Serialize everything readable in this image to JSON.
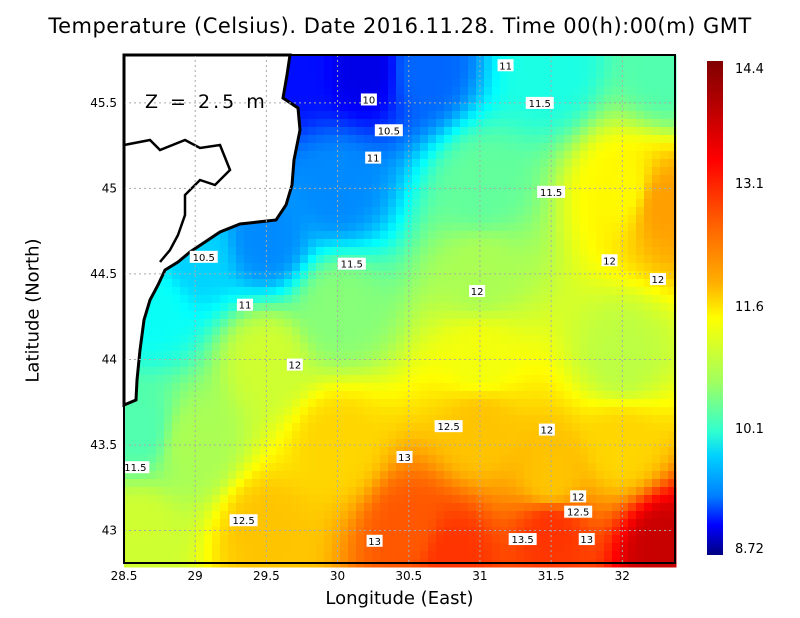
{
  "title": "Temperature (Celsius). Date 2016.11.28. Time 00(h):00(m) GMT",
  "depth_label": "Z = 2.5 m",
  "chart_data": {
    "type": "heatmap",
    "title": "Temperature (Celsius). Date 2016.11.28. Time 00(h):00(m) GMT",
    "xlabel": "Longitude (East)",
    "ylabel": "Latitude (North)",
    "xlim": [
      28.5,
      32.37
    ],
    "ylim": [
      42.81,
      45.78
    ],
    "xticks": [
      "28.5",
      "29",
      "29.5",
      "30",
      "30.5",
      "31",
      "31.5",
      "32"
    ],
    "yticks": [
      "43",
      "43.5",
      "44",
      "44.5",
      "45",
      "45.5"
    ],
    "grid": true,
    "colorbar": {
      "min": 8.72,
      "max": 14.4,
      "labels": [
        "14.4",
        "13.1",
        "11.6",
        "10.1",
        "8.72"
      ],
      "colormap": "jet"
    },
    "contour_labels": [
      {
        "text": "11",
        "lon": 31.18,
        "lat": 45.72
      },
      {
        "text": "10",
        "lon": 30.22,
        "lat": 45.52
      },
      {
        "text": "11.5",
        "lon": 31.42,
        "lat": 45.5
      },
      {
        "text": "10.5",
        "lon": 30.36,
        "lat": 45.34
      },
      {
        "text": "11",
        "lon": 30.25,
        "lat": 45.18
      },
      {
        "text": "11.5",
        "lon": 31.5,
        "lat": 44.98
      },
      {
        "text": "10.5",
        "lon": 29.06,
        "lat": 44.6
      },
      {
        "text": "11.5",
        "lon": 30.1,
        "lat": 44.56
      },
      {
        "text": "12",
        "lon": 31.91,
        "lat": 44.58
      },
      {
        "text": "12",
        "lon": 32.25,
        "lat": 44.47
      },
      {
        "text": "12",
        "lon": 30.98,
        "lat": 44.4
      },
      {
        "text": "11",
        "lon": 29.35,
        "lat": 44.32
      },
      {
        "text": "12",
        "lon": 29.7,
        "lat": 43.97
      },
      {
        "text": "12.5",
        "lon": 30.78,
        "lat": 43.61
      },
      {
        "text": "12",
        "lon": 31.47,
        "lat": 43.59
      },
      {
        "text": "13",
        "lon": 30.47,
        "lat": 43.43
      },
      {
        "text": "11.5",
        "lon": 28.58,
        "lat": 43.37
      },
      {
        "text": "12",
        "lon": 31.69,
        "lat": 43.2
      },
      {
        "text": "12.5",
        "lon": 31.69,
        "lat": 43.11
      },
      {
        "text": "12.5",
        "lon": 29.34,
        "lat": 43.06
      },
      {
        "text": "13.5",
        "lon": 31.3,
        "lat": 42.95
      },
      {
        "text": "13",
        "lon": 30.26,
        "lat": 42.94
      },
      {
        "text": "13",
        "lon": 31.75,
        "lat": 42.95
      }
    ],
    "field_samples": [
      [
        29.7,
        45.7,
        9.5
      ],
      [
        30.2,
        45.7,
        9.3
      ],
      [
        30.6,
        45.7,
        10
      ],
      [
        31.5,
        45.7,
        11
      ],
      [
        32.3,
        45.7,
        11.3
      ],
      [
        30.0,
        45.0,
        10.2
      ],
      [
        29.5,
        44.7,
        10.2
      ],
      [
        29.0,
        44.6,
        10.6
      ],
      [
        28.7,
        44.3,
        10.9
      ],
      [
        28.6,
        43.6,
        11.3
      ],
      [
        31.0,
        45.0,
        11.4
      ],
      [
        32.0,
        45.0,
        12.3
      ],
      [
        32.3,
        44.9,
        12.8
      ],
      [
        31.0,
        44.5,
        11.8
      ],
      [
        30.0,
        44.3,
        11.6
      ],
      [
        29.5,
        44.0,
        12.0
      ],
      [
        31.0,
        44.0,
        12.2
      ],
      [
        32.0,
        44.0,
        11.9
      ],
      [
        29.0,
        43.5,
        11.8
      ],
      [
        30.0,
        43.5,
        12.5
      ],
      [
        31.0,
        43.6,
        12.6
      ],
      [
        32.0,
        43.5,
        12.5
      ],
      [
        30.5,
        43.0,
        13.2
      ],
      [
        29.5,
        43.0,
        12.6
      ],
      [
        31.5,
        43.0,
        13.4
      ],
      [
        32.3,
        42.9,
        14.0
      ],
      [
        31.5,
        43.3,
        12.6
      ],
      [
        28.6,
        43.0,
        12.0
      ],
      [
        30.8,
        42.85,
        13.4
      ]
    ]
  }
}
